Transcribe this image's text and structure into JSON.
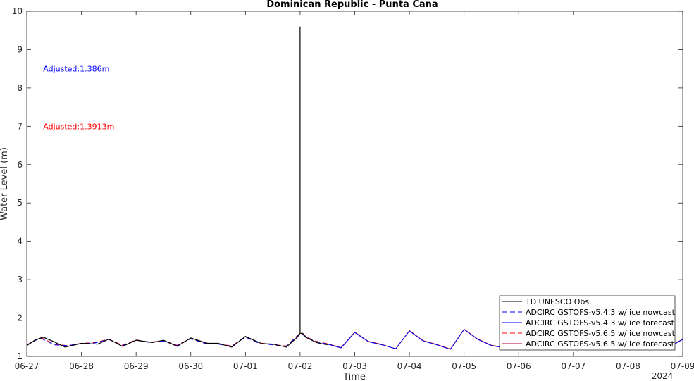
{
  "chart_data": {
    "type": "line",
    "title": "Dominican Republic - Punta Cana",
    "xlabel": "Time",
    "ylabel": "Water Level (m)",
    "year_label": "2024",
    "x_tick_labels": [
      "06-27",
      "06-28",
      "06-29",
      "06-30",
      "07-01",
      "07-02",
      "07-03",
      "07-04",
      "07-05",
      "07-06",
      "07-07",
      "07-08",
      "07-09"
    ],
    "xlim": [
      0,
      12
    ],
    "ylim": [
      1,
      10
    ],
    "y_ticks": [
      1,
      2,
      3,
      4,
      5,
      6,
      7,
      8,
      9,
      10
    ],
    "grid": false,
    "legend_position": "bottom-right",
    "annotations": [
      {
        "text": "Adjusted:1.386m",
        "color": "#0000ff",
        "x": 0.3,
        "y": 8.5
      },
      {
        "text": "Adjusted:1.3913m",
        "color": "#ff0000",
        "x": 0.3,
        "y": 7.0
      }
    ],
    "series": [
      {
        "name": "TD UNESCO Obs.",
        "color": "#000000",
        "dash": "solid",
        "x": [
          0,
          0.15,
          0.3,
          0.5,
          0.7,
          1.0,
          1.3,
          1.5,
          1.75,
          2.0,
          2.3,
          2.5,
          2.75,
          3.0,
          3.3,
          3.5,
          3.75,
          4.0,
          4.3,
          4.5,
          4.75,
          4.95,
          5.0,
          5.0,
          5.0,
          5.05,
          5.1,
          5.3,
          5.5
        ],
        "y": [
          1.28,
          1.42,
          1.5,
          1.38,
          1.24,
          1.34,
          1.32,
          1.45,
          1.26,
          1.42,
          1.36,
          1.42,
          1.26,
          1.48,
          1.34,
          1.34,
          1.24,
          1.52,
          1.33,
          1.32,
          1.24,
          1.5,
          1.6,
          9.6,
          1.6,
          1.6,
          1.5,
          1.36,
          1.3
        ]
      },
      {
        "name": "ADCIRC GSTOFS-v5.4.3 w/ ice nowcast",
        "color": "#0000ff",
        "dash": "dashed",
        "x": [
          0,
          0.25,
          0.5,
          0.75,
          1.0,
          1.25,
          1.5,
          1.75,
          2.0,
          2.25,
          2.5,
          2.75,
          3.0,
          3.25,
          3.5,
          3.75,
          4.0,
          4.25,
          4.5,
          4.75,
          5.0,
          5.25,
          5.5
        ],
        "y": [
          1.3,
          1.48,
          1.3,
          1.28,
          1.33,
          1.35,
          1.44,
          1.28,
          1.42,
          1.36,
          1.4,
          1.28,
          1.46,
          1.34,
          1.32,
          1.26,
          1.5,
          1.34,
          1.3,
          1.26,
          1.6,
          1.4,
          1.32
        ]
      },
      {
        "name": "ADCIRC GSTOFS-v5.4.3 w/ ice forecast",
        "color": "#0000ff",
        "dash": "solid",
        "x": [
          5.5,
          5.75,
          6.0,
          6.25,
          6.5,
          6.75,
          7.0,
          7.25,
          7.5,
          7.75,
          8.0,
          8.25,
          8.5,
          8.75,
          9.0,
          9.25,
          9.5,
          9.75,
          10.0,
          10.25,
          10.5,
          10.75,
          11.0,
          11.25,
          11.5,
          11.75,
          12.0
        ],
        "y": [
          1.32,
          1.22,
          1.62,
          1.38,
          1.3,
          1.2,
          1.66,
          1.4,
          1.3,
          1.18,
          1.7,
          1.44,
          1.28,
          1.22,
          1.2,
          1.46,
          1.32,
          1.24,
          1.2,
          1.3,
          1.34,
          1.28,
          1.2,
          1.3,
          1.38,
          1.24,
          1.44
        ]
      },
      {
        "name": "ADCIRC GSTOFS-v5.6.5 w/ ice nowcast",
        "color": "#ff0000",
        "dash": "dashed",
        "x": [
          0,
          0.25,
          0.5,
          0.75,
          1.0,
          1.25,
          1.5,
          1.75,
          2.0,
          2.25,
          2.5,
          2.75,
          3.0,
          3.25,
          3.5,
          3.75,
          4.0,
          4.25,
          4.5,
          4.75,
          5.0,
          5.25,
          5.5
        ],
        "y": [
          1.3,
          1.5,
          1.32,
          1.28,
          1.34,
          1.36,
          1.45,
          1.29,
          1.43,
          1.37,
          1.41,
          1.29,
          1.47,
          1.35,
          1.33,
          1.27,
          1.51,
          1.35,
          1.31,
          1.27,
          1.61,
          1.41,
          1.33
        ]
      },
      {
        "name": "ADCIRC GSTOFS-v5.6.5 w/ ice forecast",
        "color": "#b0002a",
        "dash": "solid",
        "x": [
          5.5,
          5.75,
          6.0,
          6.25,
          6.5,
          6.75,
          7.0,
          7.25,
          7.5,
          7.75,
          8.0,
          8.25,
          8.5,
          8.75,
          9.0,
          9.25,
          9.5,
          9.75,
          10.0,
          10.25,
          10.5,
          10.75,
          11.0,
          11.25,
          11.5,
          11.75,
          12.0
        ],
        "y": [
          1.33,
          1.23,
          1.63,
          1.39,
          1.31,
          1.19,
          1.67,
          1.41,
          1.31,
          1.19,
          1.71,
          1.45,
          1.29,
          1.23,
          1.21,
          1.47,
          1.33,
          1.25,
          1.21,
          1.31,
          1.35,
          1.29,
          1.21,
          1.31,
          1.39,
          1.25,
          1.45
        ]
      }
    ]
  }
}
